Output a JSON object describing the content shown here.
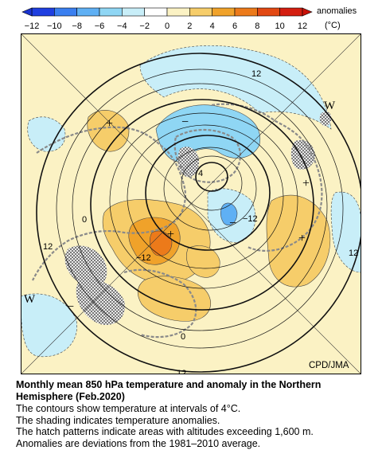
{
  "scale": {
    "title": "anomalies",
    "unit": "(°C)",
    "ticks": [
      "−12",
      "−10",
      "−8",
      "−6",
      "−4",
      "−2",
      "0",
      "2",
      "4",
      "6",
      "8",
      "10",
      "12"
    ],
    "colors": [
      "#1f3fe0",
      "#3a7ff0",
      "#5fb0f4",
      "#8fd6f4",
      "#c8eef8",
      "#ffffff",
      "#fbf2c4",
      "#f6cd6a",
      "#f0a22a",
      "#ec7a1a",
      "#e24812",
      "#d41e10"
    ]
  },
  "map": {
    "credit": "CPD/JMA",
    "contour_labels": [
      "12",
      "4",
      "0",
      "−12",
      "−12",
      "12",
      "12",
      "0",
      "12"
    ],
    "signs": [
      "W",
      "W",
      "+",
      "+",
      "+",
      "+",
      "−",
      "−",
      "−"
    ]
  },
  "caption": {
    "title_line1": "Monthly mean 850 hPa temperature and anomaly in the Northern",
    "title_line2": "Hemisphere (Feb.2020)",
    "line1": "The contours show temperature at intervals of 4°C.",
    "line2": "The shading indicates temperature anomalies.",
    "line3": "The hatch patterns indicate areas with altitudes exceeding 1,600 m.",
    "line4": "Anomalies are deviations from the 1981–2010 average."
  }
}
